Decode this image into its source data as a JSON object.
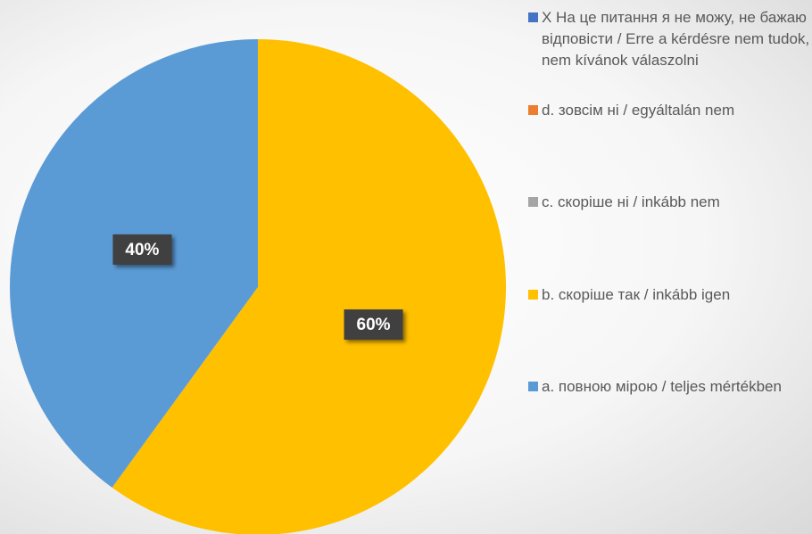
{
  "chart_data": {
    "type": "pie",
    "categories": [
      "X На це питання я не можу, не бажаю відповісти / Erre a kérdésre nem tudok, nem kívánok válaszolni",
      "d. зовсім ні / egyáltalán nem",
      "c. скоріше ні / inkább nem",
      "b. скоріше так / inkább igen",
      "a. повною мірою / teljes mértékben"
    ],
    "values": [
      0,
      0,
      0,
      60,
      40
    ],
    "value_labels": [
      null,
      null,
      null,
      "60%",
      "40%"
    ],
    "colors": [
      "#4472c4",
      "#ed7d31",
      "#a5a5a5",
      "#ffc000",
      "#5b9bd5"
    ],
    "legend": "right"
  }
}
